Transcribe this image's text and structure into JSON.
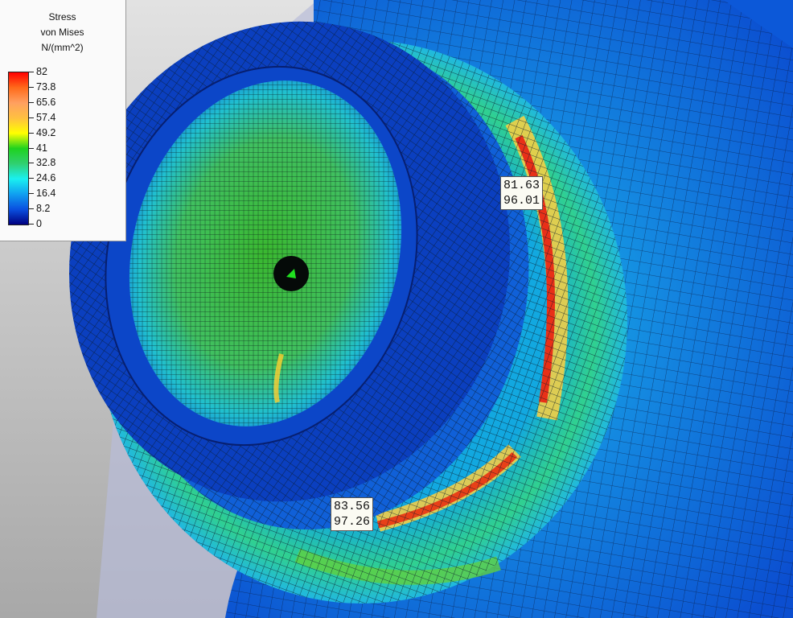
{
  "legend": {
    "title_lines": [
      "Stress",
      "von Mises",
      "N/(mm^2)"
    ],
    "ticks": [
      "82",
      "73.8",
      "65.6",
      "57.4",
      "49.2",
      "41",
      "32.8",
      "24.6",
      "16.4",
      "8.2",
      "0"
    ],
    "min": 0,
    "max": 82,
    "colormap": [
      "#ff0000",
      "#ff6a1a",
      "#ffa060",
      "#ffc040",
      "#ffff00",
      "#1ed21e",
      "#30d070",
      "#1af0f0",
      "#10a0f0",
      "#0a50e0",
      "#000080"
    ]
  },
  "probes": [
    {
      "value1": "81.63",
      "value2": "96.01"
    },
    {
      "value1": "83.56",
      "value2": "97.26"
    }
  ]
}
